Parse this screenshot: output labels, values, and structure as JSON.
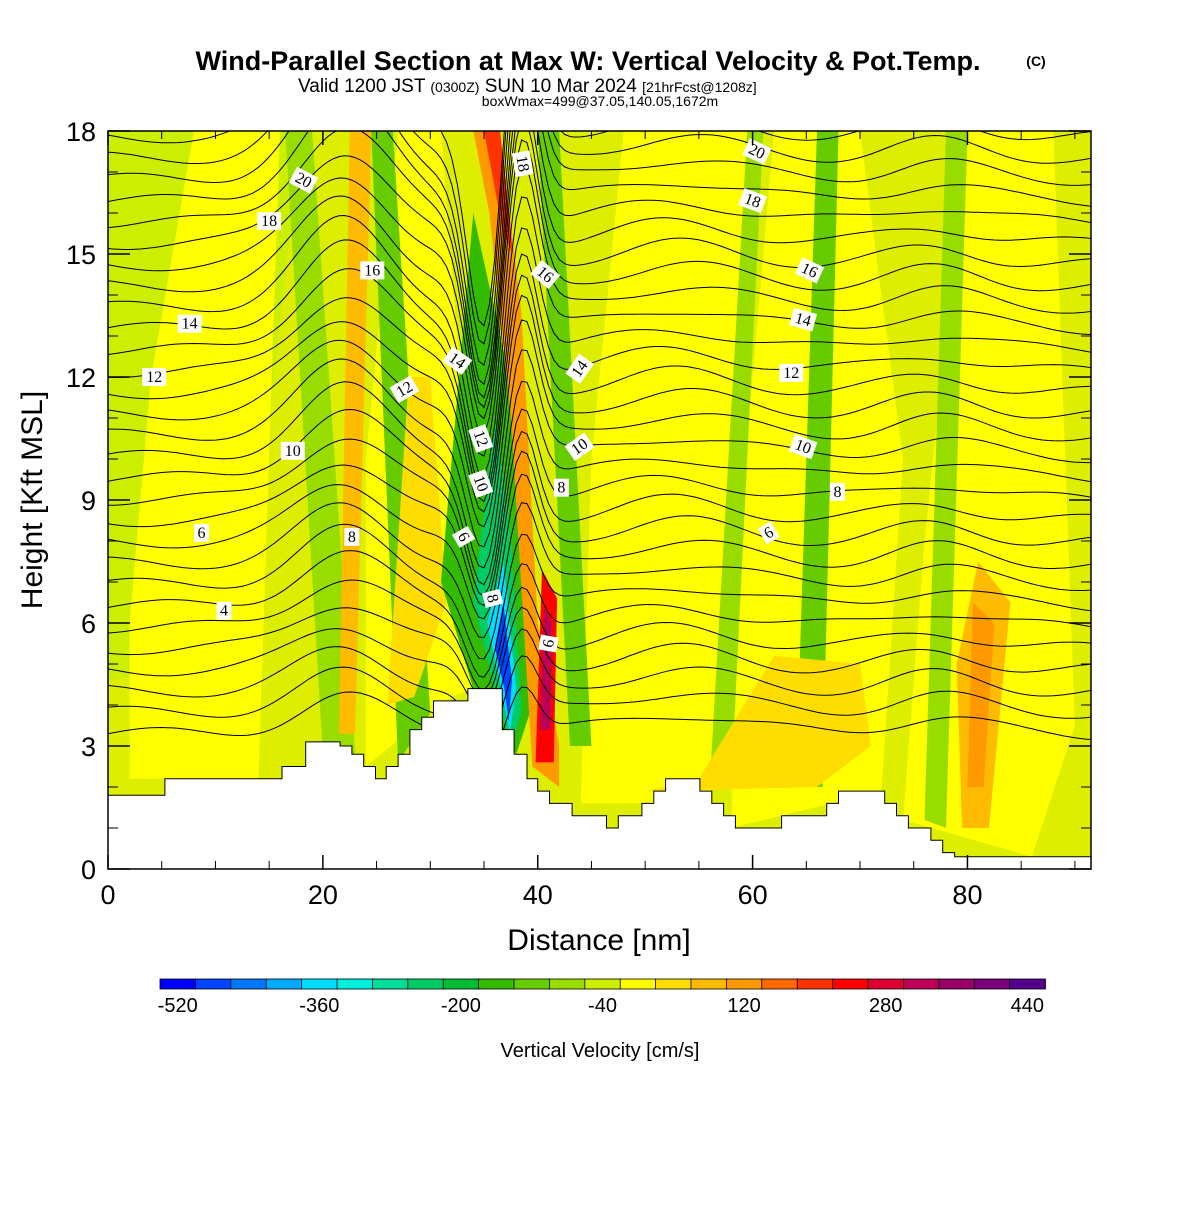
{
  "chart_data": {
    "type": "heatmap",
    "title": "Wind-Parallel Section at Max W: Vertical Velocity & Pot.Temp.",
    "title_mark": "(C)",
    "subtitle": {
      "main1": "Valid 1200 JST",
      "utc": "(0300Z)",
      "main2": "SUN 10 Mar 2024",
      "fcst": "[21hrFcst@1208z]"
    },
    "box_info": "boxWmax=499@37.05,140.05,1672m",
    "xlabel": "Distance [nm]",
    "ylabel": "Height [Kft MSL]",
    "xlim": [
      0,
      91.5
    ],
    "ylim": [
      0,
      18
    ],
    "x_ticks": [
      0,
      20,
      40,
      60,
      80
    ],
    "y_ticks": [
      0,
      3,
      6,
      9,
      12,
      15,
      18
    ],
    "field": "Vertical Velocity",
    "colorbar": {
      "label": "Vertical Velocity [cm/s]",
      "tick_labels": [
        "-520",
        "-360",
        "-200",
        "-40",
        "120",
        "280",
        "440"
      ],
      "colors": [
        "#0000ff",
        "#0044ff",
        "#0077ff",
        "#00aaff",
        "#00ddff",
        "#00eedd",
        "#00dd99",
        "#00cc66",
        "#00bb33",
        "#33bb00",
        "#66cc00",
        "#99dd00",
        "#ccee00",
        "#ffff00",
        "#ffdd00",
        "#ffbb00",
        "#ff9900",
        "#ff6600",
        "#ff3300",
        "#ff0000",
        "#dd0033",
        "#bb0055",
        "#990066",
        "#770077",
        "#550088"
      ]
    },
    "terrain": [
      [
        0,
        1.8
      ],
      [
        5.3,
        1.8
      ],
      [
        5.3,
        2.2
      ],
      [
        16.2,
        2.2
      ],
      [
        16.2,
        2.5
      ],
      [
        18.4,
        2.5
      ],
      [
        18.4,
        3.1
      ],
      [
        21.6,
        3.1
      ],
      [
        21.6,
        3.0
      ],
      [
        22.7,
        3.0
      ],
      [
        22.7,
        2.8
      ],
      [
        23.8,
        2.8
      ],
      [
        23.8,
        2.5
      ],
      [
        24.9,
        2.5
      ],
      [
        24.9,
        2.2
      ],
      [
        25.9,
        2.2
      ],
      [
        25.9,
        2.5
      ],
      [
        27.0,
        2.5
      ],
      [
        27.0,
        2.8
      ],
      [
        28.1,
        2.8
      ],
      [
        28.1,
        3.4
      ],
      [
        29.2,
        3.4
      ],
      [
        29.2,
        3.7
      ],
      [
        30.3,
        3.7
      ],
      [
        30.3,
        4.1
      ],
      [
        33.5,
        4.1
      ],
      [
        33.5,
        4.4
      ],
      [
        36.7,
        4.4
      ],
      [
        36.7,
        3.4
      ],
      [
        37.8,
        3.4
      ],
      [
        37.8,
        2.8
      ],
      [
        39.0,
        2.8
      ],
      [
        39.0,
        2.2
      ],
      [
        40.0,
        2.2
      ],
      [
        40.0,
        1.9
      ],
      [
        41.1,
        1.9
      ],
      [
        41.1,
        1.6
      ],
      [
        43.2,
        1.6
      ],
      [
        43.2,
        1.3
      ],
      [
        46.4,
        1.3
      ],
      [
        46.4,
        1.0
      ],
      [
        47.5,
        1.0
      ],
      [
        47.5,
        1.3
      ],
      [
        49.7,
        1.3
      ],
      [
        49.7,
        1.6
      ],
      [
        50.8,
        1.6
      ],
      [
        50.8,
        1.9
      ],
      [
        51.9,
        1.9
      ],
      [
        51.9,
        2.2
      ],
      [
        55.1,
        2.2
      ],
      [
        55.1,
        1.9
      ],
      [
        56.2,
        1.9
      ],
      [
        56.2,
        1.6
      ],
      [
        57.3,
        1.6
      ],
      [
        57.3,
        1.3
      ],
      [
        58.4,
        1.3
      ],
      [
        58.4,
        1.0
      ],
      [
        62.7,
        1.0
      ],
      [
        62.7,
        1.3
      ],
      [
        66.9,
        1.3
      ],
      [
        66.9,
        1.6
      ],
      [
        68.0,
        1.6
      ],
      [
        68.0,
        1.9
      ],
      [
        72.3,
        1.9
      ],
      [
        72.3,
        1.6
      ],
      [
        73.4,
        1.6
      ],
      [
        73.4,
        1.3
      ],
      [
        74.5,
        1.3
      ],
      [
        74.5,
        1.0
      ],
      [
        76.6,
        1.0
      ],
      [
        76.6,
        0.7
      ],
      [
        77.7,
        0.7
      ],
      [
        77.7,
        0.4
      ],
      [
        78.8,
        0.4
      ],
      [
        78.8,
        0.3
      ],
      [
        91.5,
        0.3
      ]
    ],
    "contour_labels": [
      {
        "text": "20",
        "x": 18.2,
        "y": 16.8,
        "rot": 28
      },
      {
        "text": "18",
        "x": 15.0,
        "y": 15.8,
        "rot": 0
      },
      {
        "text": "16",
        "x": 24.6,
        "y": 14.6,
        "rot": 0
      },
      {
        "text": "14",
        "x": 7.6,
        "y": 13.3,
        "rot": 0
      },
      {
        "text": "12",
        "x": 4.3,
        "y": 12.0,
        "rot": 0
      },
      {
        "text": "14",
        "x": 32.5,
        "y": 12.4,
        "rot": 35
      },
      {
        "text": "12",
        "x": 27.6,
        "y": 11.7,
        "rot": -30
      },
      {
        "text": "10",
        "x": 17.2,
        "y": 10.2,
        "rot": 0
      },
      {
        "text": "12",
        "x": 34.7,
        "y": 10.5,
        "rot": 70
      },
      {
        "text": "10",
        "x": 34.7,
        "y": 9.4,
        "rot": 70
      },
      {
        "text": "6",
        "x": 33.1,
        "y": 8.1,
        "rot": 60
      },
      {
        "text": "8",
        "x": 22.7,
        "y": 8.1,
        "rot": 0
      },
      {
        "text": "6",
        "x": 8.7,
        "y": 8.2,
        "rot": 0
      },
      {
        "text": "4",
        "x": 10.8,
        "y": 6.3,
        "rot": 0
      },
      {
        "text": "8",
        "x": 35.8,
        "y": 6.6,
        "rot": 75
      },
      {
        "text": "6",
        "x": 41.0,
        "y": 5.5,
        "rot": -80
      },
      {
        "text": "18",
        "x": 38.6,
        "y": 17.2,
        "rot": 80
      },
      {
        "text": "16",
        "x": 40.7,
        "y": 14.5,
        "rot": 40
      },
      {
        "text": "14",
        "x": 43.9,
        "y": 12.2,
        "rot": -55
      },
      {
        "text": "10",
        "x": 43.9,
        "y": 10.3,
        "rot": -35
      },
      {
        "text": "8",
        "x": 42.2,
        "y": 9.3,
        "rot": 0
      },
      {
        "text": "20",
        "x": 60.4,
        "y": 17.5,
        "rot": 25
      },
      {
        "text": "18",
        "x": 60.0,
        "y": 16.3,
        "rot": 20
      },
      {
        "text": "16",
        "x": 65.3,
        "y": 14.6,
        "rot": 25
      },
      {
        "text": "14",
        "x": 64.7,
        "y": 13.4,
        "rot": 15
      },
      {
        "text": "12",
        "x": 63.6,
        "y": 12.1,
        "rot": 0
      },
      {
        "text": "10",
        "x": 64.7,
        "y": 10.3,
        "rot": 20
      },
      {
        "text": "8",
        "x": 67.9,
        "y": 9.2,
        "rot": 0
      },
      {
        "text": "6",
        "x": 61.5,
        "y": 8.2,
        "rot": -30
      }
    ]
  }
}
